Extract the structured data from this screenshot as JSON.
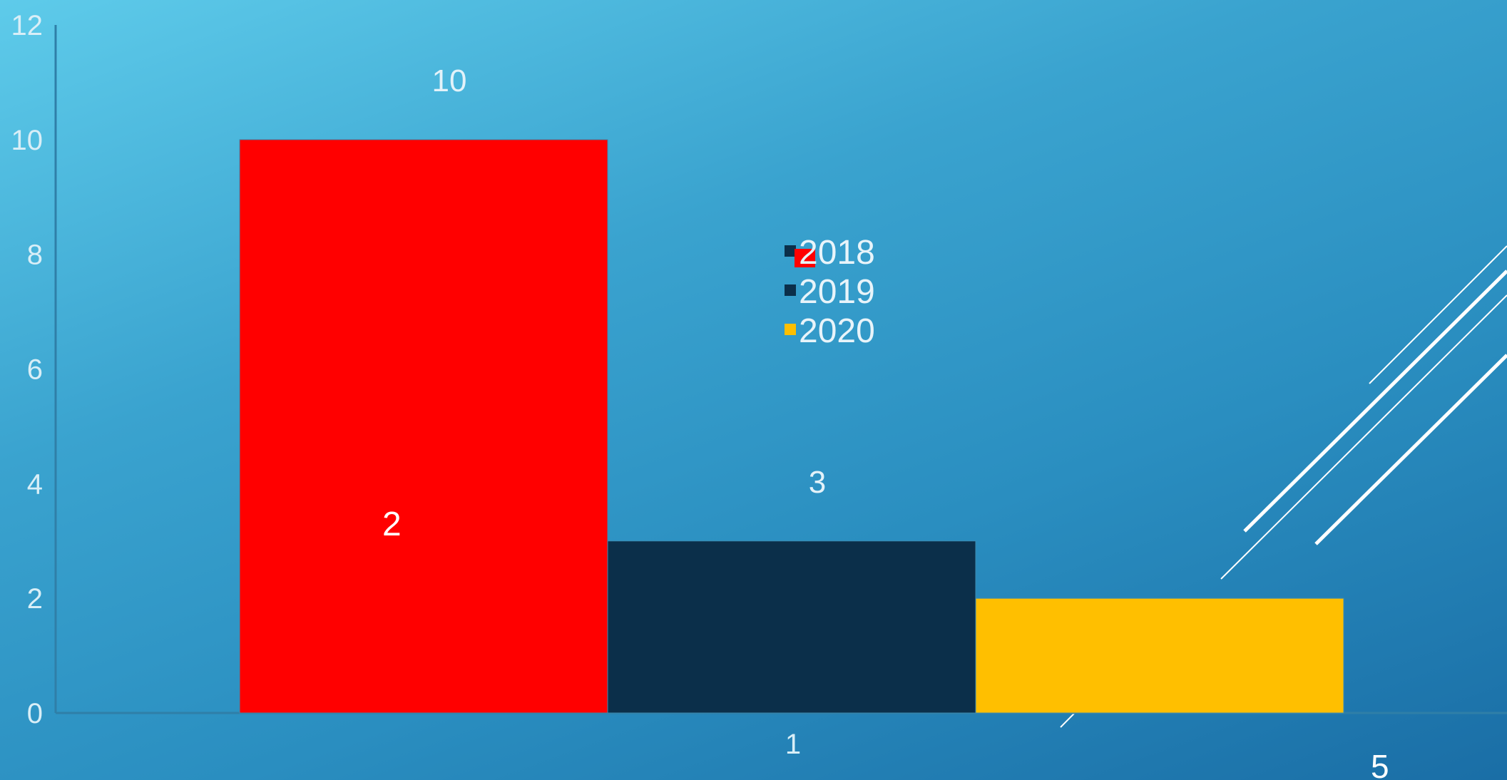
{
  "chart_data": {
    "type": "bar",
    "categories": [
      "1"
    ],
    "series": [
      {
        "name": "2018",
        "values": [
          10
        ],
        "color": "#ff0000"
      },
      {
        "name": "2019",
        "values": [
          3
        ],
        "color": "#0b2f4a"
      },
      {
        "name": "2020",
        "values": [
          2
        ],
        "color": "#ffbf00"
      }
    ],
    "ylim": [
      0,
      12
    ],
    "yticks": [
      "0",
      "2",
      "4",
      "6",
      "8",
      "10",
      "12"
    ],
    "data_labels": [
      "10",
      "3",
      ""
    ],
    "legend_position": "center",
    "grid": false
  },
  "annotations": {
    "inner_label": "2",
    "corner_label": "5"
  },
  "colors": {
    "legend_marker_2018": "#0b2f4a",
    "legend_overlay": "#ff0000",
    "axis": "#2f7fa8"
  }
}
